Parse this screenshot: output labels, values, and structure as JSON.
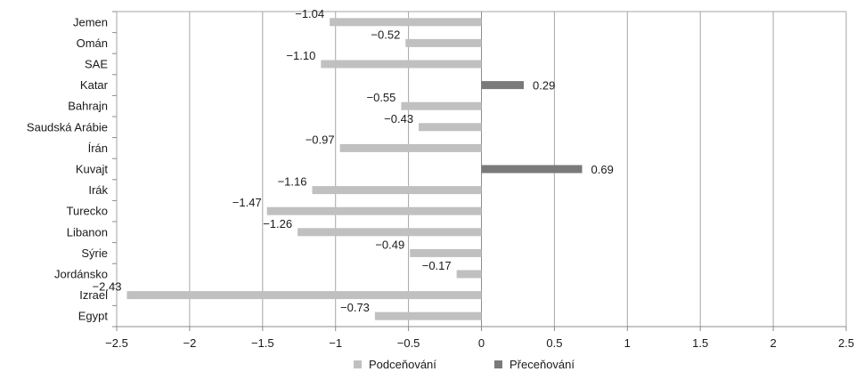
{
  "chart_data": {
    "type": "bar",
    "orientation": "horizontal",
    "categories": [
      "Jemen",
      "Omán",
      "SAE",
      "Katar",
      "Bahrajn",
      "Saudská Arábie",
      "Írán",
      "Kuvajt",
      "Irák",
      "Turecko",
      "Libanon",
      "Sýrie",
      "Jordánsko",
      "Izrael",
      "Egypt"
    ],
    "values": [
      -1.04,
      -0.52,
      -1.1,
      0.29,
      -0.55,
      -0.43,
      -0.97,
      0.69,
      -1.16,
      -1.47,
      -1.26,
      -0.49,
      -0.17,
      -2.43,
      -0.73
    ],
    "value_labels": [
      "−1.04",
      "−0.52",
      "−1.10",
      "0.29",
      "−0.55",
      "−0.43",
      "−0.97",
      "0.69",
      "−1.16",
      "−1.47",
      "−1.26",
      "−0.49",
      "−0.17",
      "−2.43",
      "−0.73"
    ],
    "xlim": [
      -2.5,
      2.5
    ],
    "xticks": [
      -2.5,
      -2,
      -1.5,
      -1,
      -0.5,
      0,
      0.5,
      1,
      1.5,
      2,
      2.5
    ],
    "xtick_labels": [
      "−2.5",
      "−2",
      "−1.5",
      "−1",
      "−0.5",
      "0",
      "0.5",
      "1",
      "1.5",
      "2",
      "2.5"
    ],
    "grid": true,
    "legend": {
      "position": "bottom",
      "entries": [
        {
          "name": "Podceňování",
          "color": "#c0c0c0"
        },
        {
          "name": "Přeceňování",
          "color": "#7a7a7a"
        }
      ]
    },
    "colors": {
      "negative": "#c0c0c0",
      "positive": "#7a7a7a",
      "grid": "#a6a6a6",
      "axis": "#8c8c8c"
    }
  }
}
